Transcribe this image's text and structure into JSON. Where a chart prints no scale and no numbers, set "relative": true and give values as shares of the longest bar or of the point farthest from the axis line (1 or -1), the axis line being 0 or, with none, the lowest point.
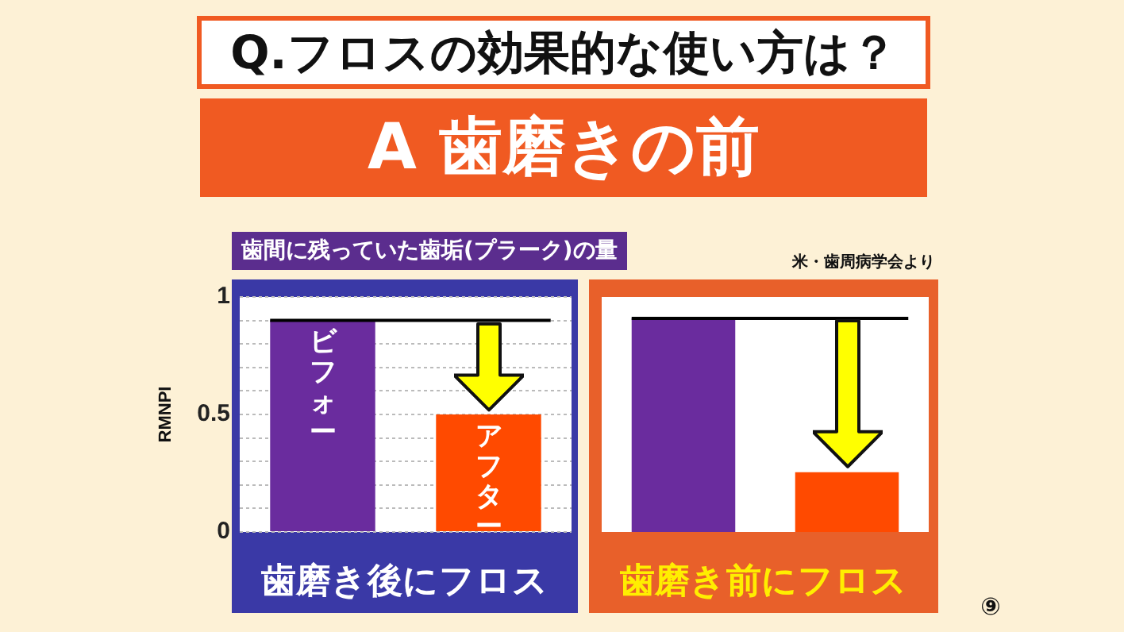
{
  "chart_data": [
    {
      "type": "bar",
      "title": "Q.フロスの効果的な使い方は？",
      "subtitle": "A 歯磨きの前",
      "ylabel": "RMNPI",
      "xlabel": "歯磨き後にフロス",
      "annotations": [
        "歯間に残っていた歯垢(プラーク)の量"
      ],
      "categories": [
        "ビフォー",
        "アフター"
      ],
      "values": [
        0.9,
        0.5
      ],
      "colors": [
        "#6a2c9e",
        "#ff4a00"
      ],
      "ylim": [
        0,
        1
      ],
      "yticks": [
        0,
        {
          "value": 0.1,
          "label": null
        },
        {
          "value": 0.2,
          "label": null
        },
        {
          "value": 0.3,
          "label": null
        },
        {
          "value": 0.4,
          "label": null
        },
        0.5,
        {
          "value": 0.6,
          "label": null
        },
        {
          "value": 0.7,
          "label": null
        },
        {
          "value": 0.8,
          "label": null
        },
        {
          "value": 0.9,
          "label": null
        },
        1
      ],
      "grid": "y",
      "ref_lines": [
        {
          "axis": "y",
          "value": 0.9,
          "color": "#000000"
        }
      ]
    },
    {
      "type": "bar",
      "xlabel": "歯磨き前にフロス",
      "annotations": [
        "米・歯周病学会より",
        "⑨"
      ],
      "categories": [
        null,
        null
      ],
      "values": [
        1,
        0.28
      ],
      "colors": [
        "#6a2c9e",
        "#ff4a00"
      ],
      "relative": true,
      "ref_lines": [
        {
          "axis": "y",
          "value": 1,
          "color": "#000000"
        }
      ]
    }
  ]
}
